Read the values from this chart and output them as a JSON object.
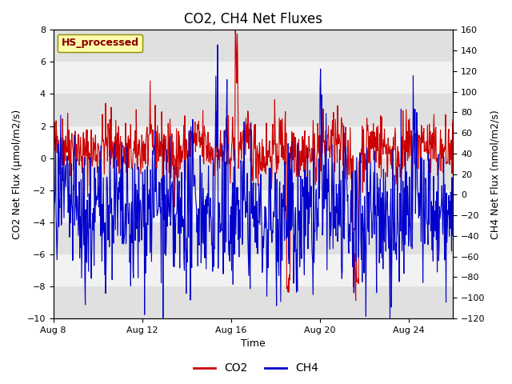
{
  "title": "CO2, CH4 Net Fluxes",
  "xlabel": "Time",
  "ylabel_left": "CO2 Net Flux (μmol/m2/s)",
  "ylabel_right": "CH4 Net Flux (nmol/m2/s)",
  "ylim_left": [
    -10,
    8
  ],
  "ylim_right": [
    -120,
    160
  ],
  "yticks_left": [
    -10,
    -8,
    -6,
    -4,
    -2,
    0,
    2,
    4,
    6,
    8
  ],
  "yticks_right": [
    -120,
    -100,
    -80,
    -60,
    -40,
    -20,
    0,
    20,
    40,
    60,
    80,
    100,
    120,
    140,
    160
  ],
  "xtick_labels": [
    "Aug 8",
    "Aug 12",
    "Aug 16",
    "Aug 20",
    "Aug 24"
  ],
  "xtick_positions": [
    0,
    4,
    8,
    12,
    16
  ],
  "n_days": 18,
  "points_per_day": 48,
  "bg_bands": [
    {
      "ymin": -10,
      "ymax": -8,
      "color": "#e0e0e0"
    },
    {
      "ymin": -8,
      "ymax": -6,
      "color": "#f2f2f2"
    },
    {
      "ymin": -6,
      "ymax": -4,
      "color": "#e0e0e0"
    },
    {
      "ymin": -4,
      "ymax": -2,
      "color": "#f2f2f2"
    },
    {
      "ymin": -2,
      "ymax": 0,
      "color": "#e0e0e0"
    },
    {
      "ymin": 0,
      "ymax": 2,
      "color": "#f2f2f2"
    },
    {
      "ymin": 2,
      "ymax": 4,
      "color": "#e0e0e0"
    },
    {
      "ymin": 4,
      "ymax": 6,
      "color": "#f2f2f2"
    },
    {
      "ymin": 6,
      "ymax": 8,
      "color": "#e0e0e0"
    }
  ],
  "co2_color": "#cc0000",
  "ch4_color": "#0000cc",
  "co2_linewidth": 0.8,
  "ch4_linewidth": 0.8,
  "legend_box_text": "HS_processed",
  "legend_box_facecolor": "#ffffaa",
  "legend_box_edgecolor": "#888800",
  "background_color": "#ffffff",
  "font_size_title": 12,
  "font_size_labels": 9,
  "font_size_ticks": 8,
  "ch4_to_co2_scale": 20.0,
  "seed": 42
}
